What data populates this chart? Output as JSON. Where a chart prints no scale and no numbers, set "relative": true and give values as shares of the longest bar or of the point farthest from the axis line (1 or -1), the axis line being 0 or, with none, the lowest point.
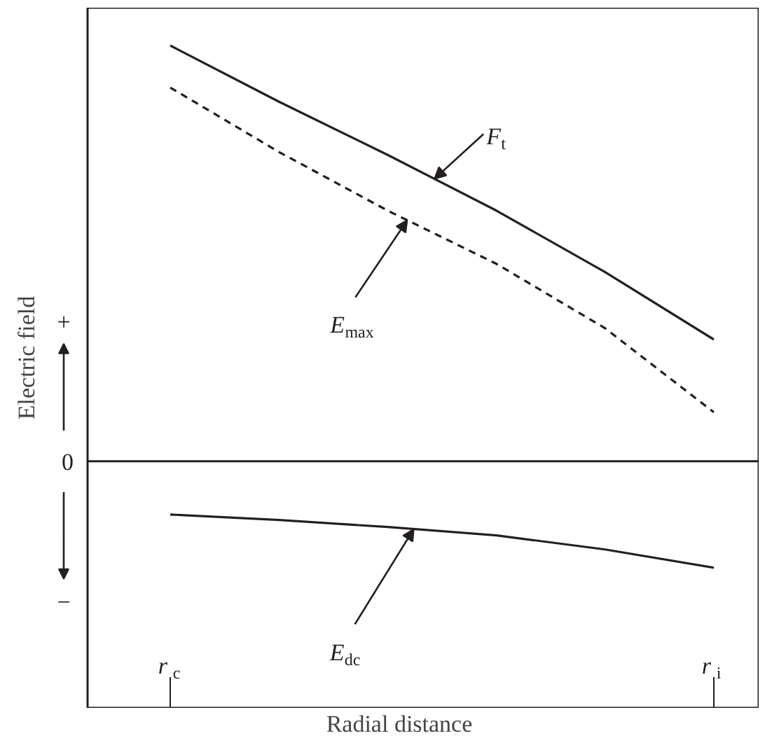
{
  "chart_data": {
    "type": "line",
    "relative": true,
    "xlabel": "Radial distance",
    "ylabel": "Electric field",
    "categories": [
      "r$_{c}$",
      null,
      null,
      null,
      null,
      "r$_{i}$"
    ],
    "series": [
      {
        "color": "#231f20",
        "line_style": "solid",
        "values": [
          1.0,
          0.865,
          0.737,
          0.603,
          0.455,
          0.293
        ]
      },
      {
        "color": "#231f20",
        "line_style": "dashed",
        "values": [
          0.899,
          0.744,
          0.603,
          0.475,
          0.32,
          0.118
        ]
      },
      {
        "color": "#231f20",
        "line_style": "solid",
        "values": [
          -0.128,
          -0.141,
          -0.158,
          -0.178,
          -0.212,
          -0.256
        ]
      }
    ],
    "annotations": [
      "F$_{t}$",
      "E$_{max}$",
      "E$_{dc}$",
      "+",
      "−"
    ],
    "ref_lines": [
      {
        "axis": "y",
        "value": 0,
        "label": "0"
      }
    ],
    "grid": false
  }
}
